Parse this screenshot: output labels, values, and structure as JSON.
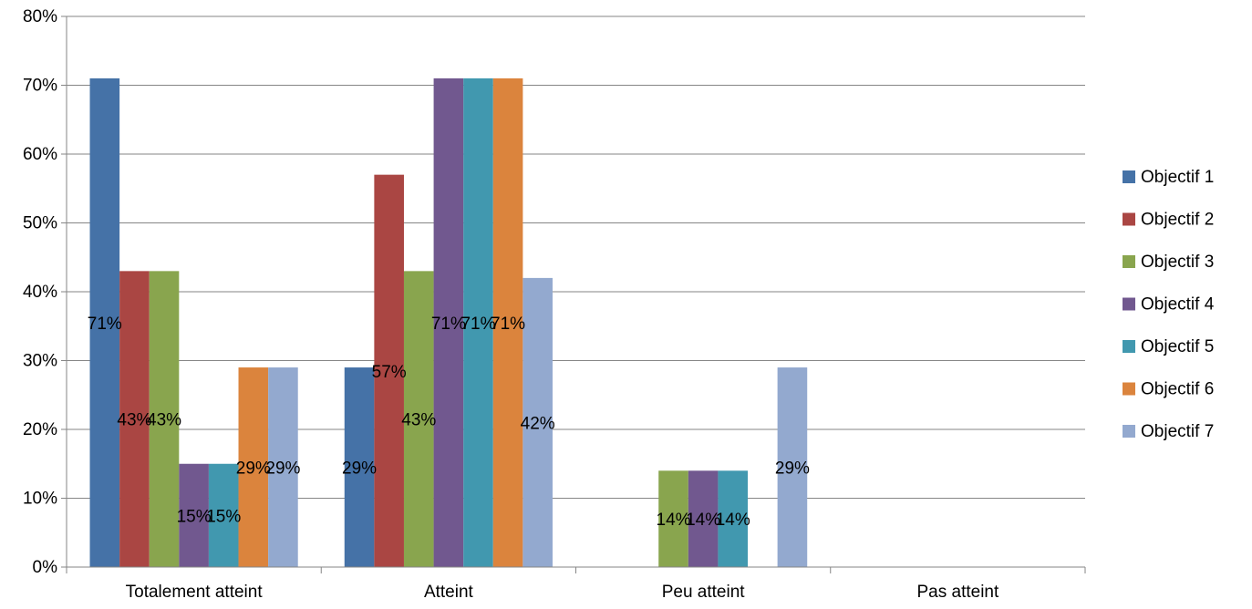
{
  "chart_data": {
    "type": "bar",
    "title": "",
    "xlabel": "",
    "ylabel": "",
    "ylim": [
      0,
      80
    ],
    "y_unit": "%",
    "y_ticks": [
      "0%",
      "10%",
      "20%",
      "30%",
      "40%",
      "50%",
      "60%",
      "70%",
      "80%"
    ],
    "grid": true,
    "legend_position": "right",
    "categories": [
      "Totalement atteint",
      "Atteint",
      "Peu atteint",
      "Pas atteint"
    ],
    "series": [
      {
        "name": "Objectif 1",
        "color": "#4572A7",
        "values": [
          71,
          29,
          null,
          null
        ],
        "labels": [
          "71%",
          "29%",
          "",
          ""
        ]
      },
      {
        "name": "Objectif 2",
        "color": "#AA4643",
        "values": [
          43,
          57,
          null,
          null
        ],
        "labels": [
          "43%",
          "57%",
          "",
          ""
        ]
      },
      {
        "name": "Objectif 3",
        "color": "#89A54E",
        "values": [
          43,
          43,
          14,
          null
        ],
        "labels": [
          "43%",
          "43%",
          "14%",
          ""
        ]
      },
      {
        "name": "Objectif 4",
        "color": "#71588F",
        "values": [
          15,
          71,
          14,
          null
        ],
        "labels": [
          "15%",
          "71%",
          "14%",
          ""
        ]
      },
      {
        "name": "Objectif 5",
        "color": "#4198AF",
        "values": [
          15,
          71,
          14,
          null
        ],
        "labels": [
          "15%",
          "71%",
          "14%",
          ""
        ]
      },
      {
        "name": "Objectif 6",
        "color": "#DB843D",
        "values": [
          29,
          71,
          null,
          null
        ],
        "labels": [
          "29%",
          "71%",
          "",
          ""
        ]
      },
      {
        "name": "Objectif 7",
        "color": "#93A9CF",
        "values": [
          29,
          42,
          29,
          null
        ],
        "labels": [
          "29%",
          "42%",
          "29%",
          ""
        ]
      }
    ]
  }
}
